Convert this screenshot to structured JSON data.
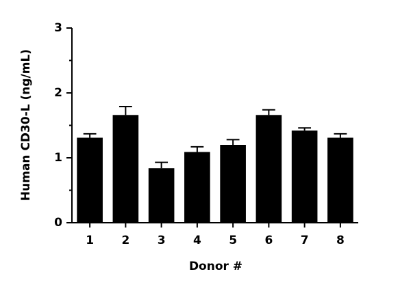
{
  "chart_data": {
    "type": "bar",
    "x_label": "Donor #",
    "y_label": "Human CD30-L (ng/mL)",
    "categories": [
      "1",
      "2",
      "3",
      "4",
      "5",
      "6",
      "7",
      "8"
    ],
    "values": [
      1.31,
      1.66,
      0.84,
      1.09,
      1.2,
      1.66,
      1.42,
      1.31
    ],
    "errors": [
      0.06,
      0.13,
      0.09,
      0.08,
      0.08,
      0.08,
      0.04,
      0.06
    ],
    "color": "#000000",
    "ylim": [
      0,
      3
    ],
    "yticks": [
      0,
      1,
      2,
      3
    ],
    "yminorticks": [
      0.5,
      1.5,
      2.5
    ],
    "grid": false
  }
}
